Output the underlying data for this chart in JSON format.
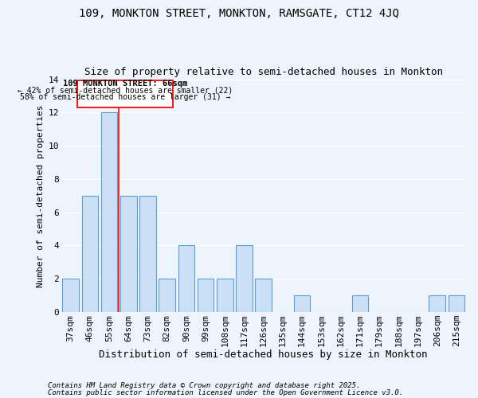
{
  "title1": "109, MONKTON STREET, MONKTON, RAMSGATE, CT12 4JQ",
  "title2": "Size of property relative to semi-detached houses in Monkton",
  "xlabel": "Distribution of semi-detached houses by size in Monkton",
  "ylabel": "Number of semi-detached properties",
  "categories": [
    "37sqm",
    "46sqm",
    "55sqm",
    "64sqm",
    "73sqm",
    "82sqm",
    "90sqm",
    "99sqm",
    "108sqm",
    "117sqm",
    "126sqm",
    "135sqm",
    "144sqm",
    "153sqm",
    "162sqm",
    "171sqm",
    "179sqm",
    "188sqm",
    "197sqm",
    "206sqm",
    "215sqm"
  ],
  "values": [
    2,
    7,
    12,
    7,
    7,
    2,
    4,
    2,
    2,
    4,
    2,
    0,
    1,
    0,
    0,
    1,
    0,
    0,
    0,
    1,
    1
  ],
  "bar_color": "#cce0f5",
  "bar_edgecolor": "#5a9fd4",
  "red_line_x": 2.5,
  "annotation_title": "109 MONKTON STREET: 66sqm",
  "annotation_line1": "← 42% of semi-detached houses are smaller (22)",
  "annotation_line2": "58% of semi-detached houses are larger (31) →",
  "ylim": [
    0,
    14
  ],
  "yticks": [
    0,
    2,
    4,
    6,
    8,
    10,
    12,
    14
  ],
  "footnote1": "Contains HM Land Registry data © Crown copyright and database right 2025.",
  "footnote2": "Contains public sector information licensed under the Open Government Licence v3.0.",
  "background_color": "#eef4fc",
  "grid_color": "#ffffff",
  "title1_fontsize": 10,
  "title2_fontsize": 9,
  "xlabel_fontsize": 9,
  "ylabel_fontsize": 8,
  "tick_fontsize": 8,
  "footnote_fontsize": 6.5
}
